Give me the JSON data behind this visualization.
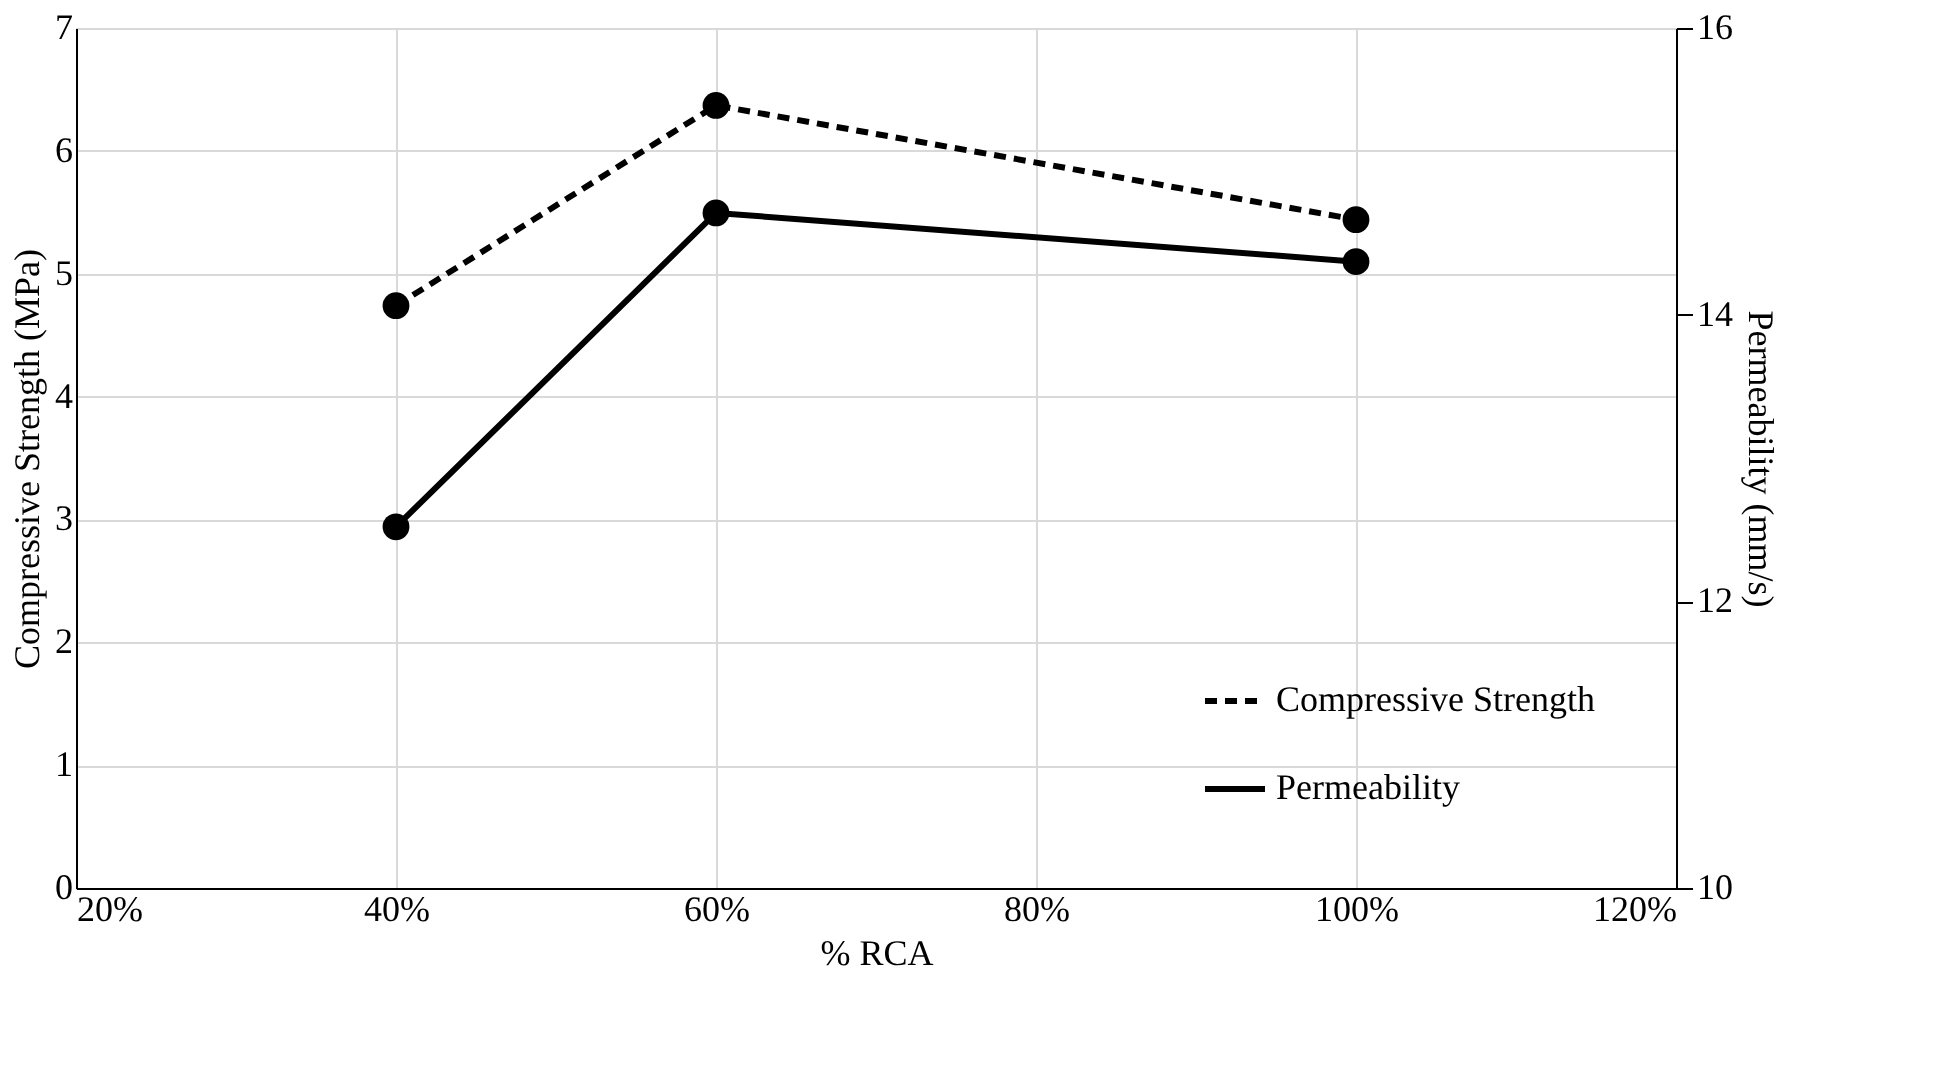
{
  "chart_data": {
    "type": "line",
    "xlabel": "% RCA",
    "ylabel": "Compressive Strength (MPa)",
    "y2label": "Permeability (mm/s)",
    "x": [
      40,
      60,
      100
    ],
    "series": [
      {
        "name": "Compressive Strength",
        "color": "#000000",
        "values": [
          4.74,
          6.37,
          5.44
        ],
        "line_style": "dashed",
        "marker": "circle"
      },
      {
        "name": "Permeability",
        "color": "#000000",
        "values": [
          12.52,
          14.71,
          14.37
        ],
        "line_style": "solid",
        "marker": "circle",
        "axis": "y2"
      }
    ],
    "xlim": [
      20,
      120
    ],
    "xticks": [
      {
        "value": 20,
        "label": "20%"
      },
      {
        "value": 40,
        "label": "40%"
      },
      {
        "value": 60,
        "label": "60%"
      },
      {
        "value": 80,
        "label": "80%"
      },
      {
        "value": 100,
        "label": "100%"
      },
      {
        "value": 120,
        "label": "120%"
      }
    ],
    "ylim": [
      0,
      7
    ],
    "yticks": [
      0,
      1,
      2,
      3,
      4,
      5,
      6,
      7
    ],
    "y2lim": [
      10,
      16
    ],
    "y2ticks": [
      10,
      12,
      14,
      16
    ],
    "grid": true,
    "legend": "bottom right"
  }
}
